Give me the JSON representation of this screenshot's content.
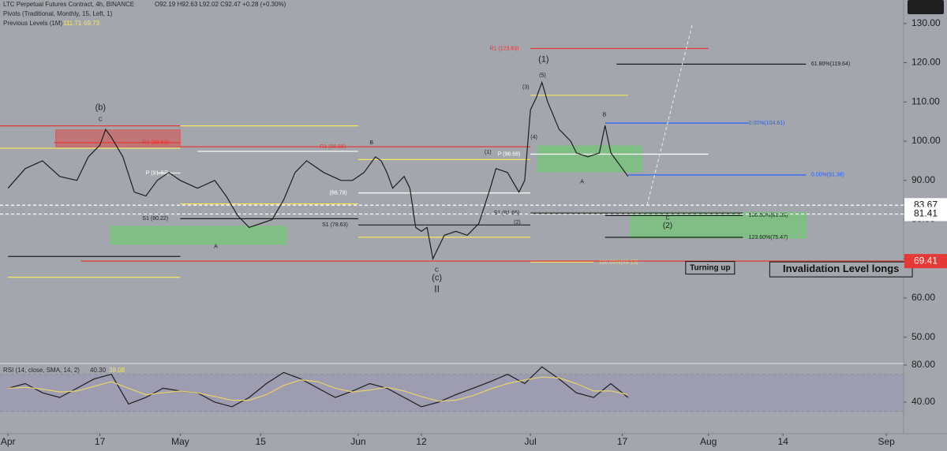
{
  "header": {
    "title": "LTC Perpetual Futures Contract, 4h, BINANCE",
    "ohlc": "O92.19 H92.63 L92.02 C92.47 +0.28 (+0.30%)",
    "pivots": "Pivots (Traditional, Monthly, 15, Left, 1)",
    "previous": "Previous Levels (1M)",
    "previous_values": [
      "111.71",
      "69.73"
    ]
  },
  "chart_data": [
    {
      "type": "line",
      "color": "#1e1e1e",
      "x": [
        0,
        3,
        6,
        9,
        12,
        14,
        16,
        17,
        18,
        20,
        22,
        24,
        26,
        28,
        30,
        33,
        36,
        38,
        40,
        42,
        44,
        46,
        48,
        50,
        52,
        55,
        58,
        60,
        62,
        64,
        65,
        66,
        67,
        69,
        70,
        71,
        72,
        73,
        74,
        76,
        78,
        80,
        82,
        84,
        85,
        87,
        89,
        90,
        91,
        92,
        93,
        94,
        96,
        98,
        99,
        101,
        103,
        104,
        105,
        106,
        107,
        108
      ],
      "values": [
        88,
        93,
        95,
        91,
        90,
        96,
        99,
        103,
        101,
        96,
        87,
        86,
        90,
        92,
        90,
        88,
        90,
        86,
        81,
        78,
        79,
        80,
        85,
        92,
        95,
        92,
        90,
        90,
        92,
        96,
        95,
        92,
        88,
        91,
        88,
        78,
        77,
        78,
        70,
        76,
        77,
        76,
        79,
        88,
        93,
        92,
        87,
        90,
        108,
        111,
        115,
        110,
        103,
        100,
        97,
        96,
        97,
        104,
        97,
        95,
        93,
        91
      ],
      "xlim": [
        -1.4,
        156
      ],
      "ylim": [
        43.5,
        136
      ],
      "xticks": [
        {
          "value": 0,
          "label": "Apr"
        },
        {
          "value": 16,
          "label": "17"
        },
        {
          "value": 30,
          "label": "May"
        },
        {
          "value": 44,
          "label": "15"
        },
        {
          "value": 61,
          "label": "Jun"
        },
        {
          "value": 72,
          "label": "12"
        },
        {
          "value": 91,
          "label": "Jul"
        },
        {
          "value": 107,
          "label": "17"
        },
        {
          "value": 122,
          "label": "Aug"
        },
        {
          "value": 135,
          "label": "14"
        },
        {
          "value": 153,
          "label": "Sep"
        }
      ],
      "yticks": [
        {
          "value": 50,
          "label": "50.00"
        },
        {
          "value": 60,
          "label": "60.00"
        },
        {
          "value": 70,
          "label": "70.00"
        },
        {
          "value": 80,
          "label": "80.00"
        },
        {
          "value": 90,
          "label": "90.00"
        },
        {
          "value": 100,
          "label": "100.00"
        },
        {
          "value": 110,
          "label": "110.00"
        },
        {
          "value": 120,
          "label": "120.00"
        },
        {
          "value": 130,
          "label": "130.00"
        }
      ],
      "zones": [
        {
          "x": [
            8.3,
            30
          ],
          "values": [
            102.9,
            98.5
          ],
          "color": "rgba(229,57,53,0.45)"
        },
        {
          "x": [
            17.9,
            48.4
          ],
          "values": [
            78.3,
            73.7
          ],
          "color": "rgba(102,210,102,0.55)"
        },
        {
          "x": [
            92.2,
            110.4
          ],
          "values": [
            98.8,
            92.2
          ],
          "color": "rgba(102,210,102,0.55)"
        },
        {
          "x": [
            108.4,
            139
          ],
          "values": [
            81.8,
            75.3
          ],
          "color": "rgba(102,210,102,0.55)"
        }
      ],
      "levels": [
        {
          "value": 123.63,
          "x": [
            91,
            122
          ],
          "color": "#e53935",
          "label": "R1 (123.63)",
          "label_x": 83.9
        },
        {
          "value": 119.64,
          "x": [
            106,
            139
          ],
          "color": "#1e1e1e",
          "label": "61.80%(119.64)",
          "label_x": 139.9
        },
        {
          "value": 111.71,
          "x": [
            91,
            108
          ],
          "color": "#f5e663"
        },
        {
          "value": 104.61,
          "x": [
            104,
            129
          ],
          "color": "#2962ff",
          "label": "0.00%(104.61)",
          "label_x": 129
        },
        {
          "value": 91.38,
          "x": [
            108,
            139
          ],
          "color": "#2962ff",
          "label": "0.00%(91.38)",
          "label_x": 139.9
        },
        {
          "value": 96.68,
          "x": [
            91,
            122
          ],
          "color": "#ffffff",
          "label": "P (96.68)",
          "label_x": 85.3
        },
        {
          "value": 98.58,
          "x": [
            30,
            91
          ],
          "color": "#e53935",
          "label": "R1 (98.58)",
          "label_x": 54.3
        },
        {
          "value": 81.65,
          "x": [
            91,
            128
          ],
          "color": "#1e1e1e",
          "label": "S1 (81.65)",
          "label_x": 84.6
        },
        {
          "value": 81.03,
          "x": [
            104,
            128
          ],
          "color": "#1e1e1e",
          "label": "100.00%(81.03)",
          "label_x": 129
        },
        {
          "value": 75.47,
          "x": [
            104,
            128
          ],
          "color": "#1e1e1e",
          "label": "123.60%(75.47)",
          "label_x": 129
        },
        {
          "value": 69.15,
          "x": [
            91,
            102
          ],
          "color": "#f5e663",
          "label": "100.00%(69.15)",
          "label_x": 102.9
        },
        {
          "value": 69.41,
          "x": [
            12.7,
            156
          ],
          "color": "#e53935"
        },
        {
          "value": 103.9,
          "x": [
            -1.4,
            30
          ],
          "color": "#e53935"
        },
        {
          "value": 99.63,
          "x": [
            8,
            30
          ],
          "color": "#e53935",
          "label": "R1 (99.63)",
          "label_x": 23.4
        },
        {
          "value": 98.2,
          "x": [
            -1.4,
            30
          ],
          "color": "#f5e663"
        },
        {
          "value": 91.87,
          "x": [
            26,
            30
          ],
          "color": "#ffffff",
          "label": "P (91.87)",
          "label_x": 24
        },
        {
          "value": 80.22,
          "x": [
            30,
            61
          ],
          "color": "#1e1e1e",
          "label": "S1 (80.22)",
          "label_x": 23.4
        },
        {
          "value": 78.63,
          "x": [
            61,
            91
          ],
          "color": "#1e1e1e",
          "label": "S1 (78.63)",
          "label_x": 54.7
        },
        {
          "value": 86.79,
          "x": [
            61,
            91
          ],
          "color": "#ffffff",
          "label": "(86.79)",
          "label_x": 56
        },
        {
          "value": 103.9,
          "x": [
            30,
            61
          ],
          "color": "#f5e663"
        },
        {
          "value": 84,
          "x": [
            30,
            61
          ],
          "color": "#f5e663"
        },
        {
          "value": 95.3,
          "x": [
            61,
            91
          ],
          "color": "#f5e663"
        },
        {
          "value": 75.5,
          "x": [
            61,
            91
          ],
          "color": "#f5e663"
        },
        {
          "value": 70.6,
          "x": [
            0,
            30
          ],
          "color": "#1e1e1e"
        },
        {
          "value": 65.3,
          "x": [
            0,
            30
          ],
          "color": "#f5e663"
        },
        {
          "value": 97.4,
          "x": [
            33,
            61
          ],
          "color": "#ffffff"
        },
        {
          "value": 83.67,
          "x": [
            -1.4,
            156
          ],
          "color": "#ffffff",
          "dashed": true
        },
        {
          "value": 81.41,
          "x": [
            -1.4,
            156
          ],
          "color": "#ffffff",
          "dashed": true
        }
      ],
      "annotations": [
        {
          "text": "(b)",
          "x": 16.1,
          "y": 108.5,
          "size": 11
        },
        {
          "text": "C",
          "x": 16.1,
          "y": 105.5,
          "size": 7
        },
        {
          "text": "B",
          "x": 63.3,
          "y": 99.6,
          "size": 7
        },
        {
          "text": "A",
          "x": 36.2,
          "y": 73.1,
          "size": 7
        },
        {
          "text": "C",
          "x": 74.7,
          "y": 67.1,
          "size": 7
        },
        {
          "text": "(c)",
          "x": 74.7,
          "y": 65.1,
          "size": 11
        },
        {
          "text": "II",
          "x": 74.7,
          "y": 62.1,
          "size": 12
        },
        {
          "text": "(1)",
          "x": 93.3,
          "y": 120.8,
          "size": 11
        },
        {
          "text": "(5)",
          "x": 93.1,
          "y": 116.8,
          "size": 7
        },
        {
          "text": "(3)",
          "x": 90.2,
          "y": 113.7,
          "size": 7
        },
        {
          "text": "(4)",
          "x": 91.6,
          "y": 101,
          "size": 7
        },
        {
          "text": "(1)",
          "x": 83.6,
          "y": 97.2,
          "size": 7
        },
        {
          "text": "(2)",
          "x": 88.7,
          "y": 79.3,
          "size": 7
        },
        {
          "text": "B",
          "x": 103.9,
          "y": 106.7,
          "size": 7
        },
        {
          "text": "A",
          "x": 100,
          "y": 89.6,
          "size": 7
        },
        {
          "text": "C",
          "x": 114.9,
          "y": 80.4,
          "size": 7
        },
        {
          "text": "(2)",
          "x": 114.9,
          "y": 78.4,
          "size": 10
        },
        {
          "text": "Turning up",
          "x": 122.3,
          "y": 67.7,
          "size": 10,
          "boxed": true
        },
        {
          "text": "Invalidation Level longs",
          "x": 145.1,
          "y": 67.3,
          "size": 13,
          "boxed": true
        }
      ],
      "price_labels": [
        {
          "value": 83.67,
          "color": "#ffffff",
          "text_color": "#111111"
        },
        {
          "value": 81.41,
          "color": "#ffffff",
          "text_color": "#111111"
        },
        {
          "value": 69.41,
          "color": "#e53935",
          "text_color": "#ffffff"
        }
      ]
    },
    {
      "type": "line",
      "title": "RSI (14, close, SMA, 14, 2)",
      "readings": [
        "40.30",
        "38.08"
      ],
      "x": [
        0,
        3,
        6,
        9,
        12,
        15,
        18,
        21,
        24,
        27,
        30,
        33,
        36,
        39,
        42,
        45,
        48,
        51,
        54,
        57,
        60,
        63,
        66,
        69,
        72,
        75,
        78,
        81,
        84,
        87,
        90,
        93,
        96,
        99,
        102,
        105,
        108
      ],
      "series": [
        {
          "color": "#1e1e1e",
          "values": [
            55,
            60,
            50,
            45,
            55,
            65,
            70,
            38,
            45,
            55,
            52,
            50,
            40,
            35,
            45,
            60,
            72,
            65,
            55,
            45,
            52,
            60,
            55,
            45,
            35,
            40,
            48,
            55,
            62,
            70,
            60,
            78,
            65,
            50,
            45,
            60,
            45
          ]
        },
        {
          "color": "#e8d36a",
          "values": [
            55,
            56,
            54,
            51,
            52,
            57,
            62,
            55,
            48,
            50,
            52,
            50,
            46,
            42,
            42,
            48,
            58,
            64,
            62,
            55,
            51,
            53,
            56,
            52,
            46,
            41,
            42,
            47,
            54,
            60,
            64,
            67,
            66,
            60,
            52,
            52,
            48
          ]
        }
      ],
      "xlim": [
        -1.4,
        156
      ],
      "ylim": [
        6,
        80.8
      ],
      "band": [
        30,
        70
      ],
      "yticks": [
        {
          "value": 40,
          "label": "40.00"
        },
        {
          "value": 80,
          "label": "80.00"
        }
      ]
    }
  ]
}
